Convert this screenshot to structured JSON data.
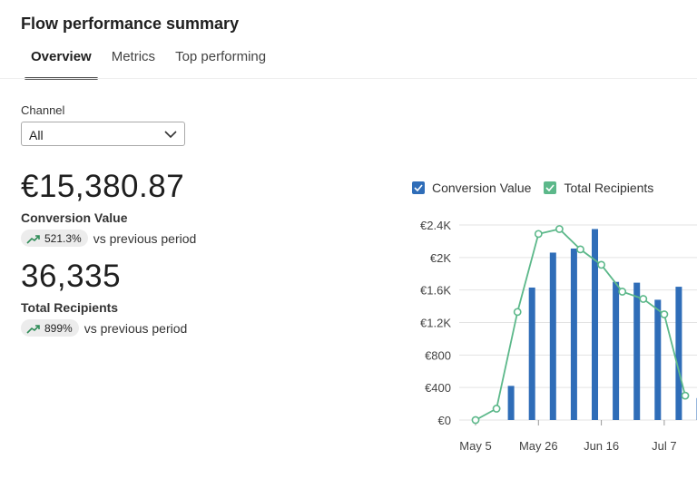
{
  "header": {
    "title": "Flow performance summary"
  },
  "tabs": [
    {
      "label": "Overview",
      "active": true
    },
    {
      "label": "Metrics",
      "active": false
    },
    {
      "label": "Top performing",
      "active": false
    }
  ],
  "filter": {
    "label": "Channel",
    "value": "All"
  },
  "metrics": [
    {
      "value": "€15,380.87",
      "label": "Conversion Value",
      "change": "521.3%",
      "comparison": "vs previous period",
      "trend_icon": "trending-up-icon"
    },
    {
      "value": "36,335",
      "label": "Total Recipients",
      "change": "899%",
      "comparison": "vs previous period",
      "trend_icon": "trending-up-icon"
    }
  ],
  "colors": {
    "bar": "#2f6db8",
    "line": "#5cb88a",
    "trend": "#2e8b57",
    "grid": "#e3e3e3"
  },
  "chart_data": {
    "type": "bar",
    "legend": {
      "position": "top",
      "items": [
        "Conversion Value",
        "Total Recipients"
      ]
    },
    "x_ticks": [
      "May 5",
      "May 26",
      "Jun 16",
      "Jul 7"
    ],
    "y_ticks": [
      "€0",
      "€400",
      "€800",
      "€1.2K",
      "€1.6K",
      "€2K",
      "€2.4K"
    ],
    "ylim": [
      0,
      2400
    ],
    "grid": true,
    "series": [
      {
        "name": "Conversion Value",
        "kind": "bar",
        "values": [
          0,
          420,
          1630,
          2060,
          2110,
          2350,
          1700,
          1690,
          1480,
          1640,
          270
        ]
      },
      {
        "name": "Total Recipients",
        "kind": "line",
        "values": [
          0,
          140,
          1330,
          2290,
          2350,
          2100,
          1910,
          1580,
          1490,
          1300,
          300
        ]
      }
    ]
  }
}
